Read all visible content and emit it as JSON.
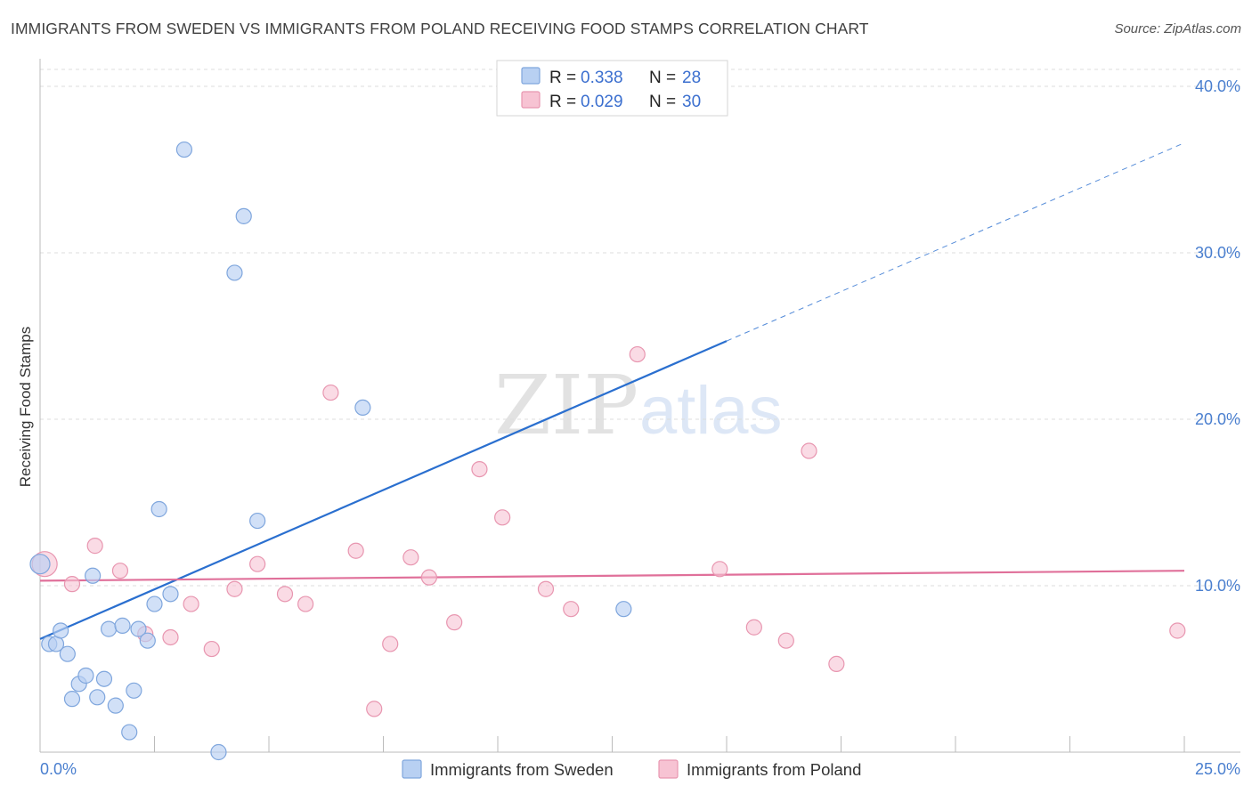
{
  "title": "IMMIGRANTS FROM SWEDEN VS IMMIGRANTS FROM POLAND RECEIVING FOOD STAMPS CORRELATION CHART",
  "source": "Source: ZipAtlas.com",
  "watermark": {
    "zip": "ZIP",
    "atlas": "atlas"
  },
  "colors": {
    "sweden_fill": "#b8d0f2",
    "sweden_stroke": "#7fa6dd",
    "sweden_line": "#2a6fcf",
    "poland_fill": "#f7c3d3",
    "poland_stroke": "#e896b0",
    "poland_line": "#e0709a",
    "grid": "#dcdcdc",
    "tick_label": "#4a7fcf"
  },
  "legend_top": {
    "rows": [
      {
        "series": "sweden",
        "r_label": "R =",
        "r_value": "0.338",
        "n_label": "N =",
        "n_value": "28"
      },
      {
        "series": "poland",
        "r_label": "R =",
        "r_value": "0.029",
        "n_label": "N =",
        "n_value": "30"
      }
    ]
  },
  "chart_data": {
    "type": "scatter",
    "title": "IMMIGRANTS FROM SWEDEN VS IMMIGRANTS FROM POLAND RECEIVING FOOD STAMPS CORRELATION CHART",
    "xlabel": "",
    "ylabel": "Receiving Food Stamps",
    "xlim": [
      0,
      25
    ],
    "ylim": [
      0,
      40
    ],
    "x_tick_labels": {
      "min": "0.0%",
      "max": "25.0%"
    },
    "y_ticks": [
      10,
      20,
      30,
      40
    ],
    "y_tick_labels": [
      "10.0%",
      "20.0%",
      "30.0%",
      "40.0%"
    ],
    "series": [
      {
        "name": "Immigrants from Sweden",
        "key": "sweden",
        "r": 0.338,
        "n": 28,
        "points": [
          [
            0.0,
            11.3
          ],
          [
            0.2,
            6.5
          ],
          [
            0.35,
            6.5
          ],
          [
            0.45,
            7.3
          ],
          [
            0.6,
            5.9
          ],
          [
            0.7,
            3.2
          ],
          [
            0.85,
            4.1
          ],
          [
            1.0,
            4.6
          ],
          [
            1.15,
            10.6
          ],
          [
            1.25,
            3.3
          ],
          [
            1.4,
            4.4
          ],
          [
            1.5,
            7.4
          ],
          [
            1.65,
            2.8
          ],
          [
            1.8,
            7.6
          ],
          [
            1.95,
            1.2
          ],
          [
            2.05,
            3.7
          ],
          [
            2.15,
            7.4
          ],
          [
            2.35,
            6.7
          ],
          [
            2.5,
            8.9
          ],
          [
            2.6,
            14.6
          ],
          [
            2.85,
            9.5
          ],
          [
            3.15,
            36.2
          ],
          [
            3.9,
            0.0
          ],
          [
            4.25,
            28.8
          ],
          [
            4.45,
            32.2
          ],
          [
            4.75,
            13.9
          ],
          [
            7.05,
            20.7
          ],
          [
            12.75,
            8.6
          ]
        ],
        "trend": {
          "x0": 0,
          "y0": 6.8,
          "x1": 15.0,
          "y1": 24.7,
          "dash_x1": 25.0,
          "dash_y1": 36.6
        }
      },
      {
        "name": "Immigrants from Poland",
        "key": "poland",
        "r": 0.029,
        "n": 30,
        "points": [
          [
            0.1,
            11.3
          ],
          [
            0.7,
            10.1
          ],
          [
            1.2,
            12.4
          ],
          [
            1.75,
            10.9
          ],
          [
            2.3,
            7.1
          ],
          [
            2.85,
            6.9
          ],
          [
            3.3,
            8.9
          ],
          [
            3.75,
            6.2
          ],
          [
            4.25,
            9.8
          ],
          [
            4.75,
            11.3
          ],
          [
            5.35,
            9.5
          ],
          [
            5.8,
            8.9
          ],
          [
            6.35,
            21.6
          ],
          [
            6.9,
            12.1
          ],
          [
            7.3,
            2.6
          ],
          [
            7.65,
            6.5
          ],
          [
            8.1,
            11.7
          ],
          [
            8.5,
            10.5
          ],
          [
            9.05,
            7.8
          ],
          [
            9.6,
            17.0
          ],
          [
            10.1,
            14.1
          ],
          [
            11.05,
            9.8
          ],
          [
            11.6,
            8.6
          ],
          [
            13.05,
            23.9
          ],
          [
            14.85,
            11.0
          ],
          [
            15.6,
            7.5
          ],
          [
            16.3,
            6.7
          ],
          [
            16.8,
            18.1
          ],
          [
            17.4,
            5.3
          ],
          [
            24.85,
            7.3
          ]
        ],
        "trend": {
          "x0": 0,
          "y0": 10.3,
          "x1": 25.0,
          "y1": 10.9
        }
      }
    ]
  },
  "legend_bottom": {
    "items": [
      {
        "series": "sweden",
        "label": "Immigrants from Sweden"
      },
      {
        "series": "poland",
        "label": "Immigrants from Poland"
      }
    ]
  }
}
